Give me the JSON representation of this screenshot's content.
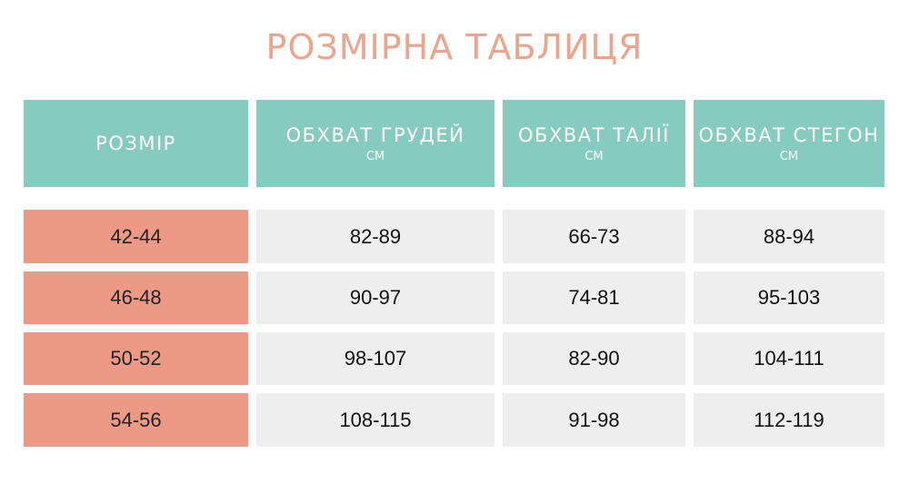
{
  "title": "РОЗМІРНА ТАБЛИЦЯ",
  "colors": {
    "header": "#86cbbf",
    "size_cell": "#ec9a85",
    "value_cell": "#eeeeee",
    "title": "#eba58d"
  },
  "headers": [
    {
      "label": "РОЗМІР",
      "unit": ""
    },
    {
      "label": "ОБХВАТ ГРУДЕЙ",
      "unit": "СМ"
    },
    {
      "label": "ОБХВАТ ТАЛІЇ",
      "unit": "СМ"
    },
    {
      "label": "ОБХВАТ СТЕГОН",
      "unit": "СМ"
    }
  ],
  "rows": [
    [
      "42-44",
      "82-89",
      "66-73",
      "88-94"
    ],
    [
      "46-48",
      "90-97",
      "74-81",
      "95-103"
    ],
    [
      "50-52",
      "98-107",
      "82-90",
      "104-111"
    ],
    [
      "54-56",
      "108-115",
      "91-98",
      "112-119"
    ]
  ]
}
